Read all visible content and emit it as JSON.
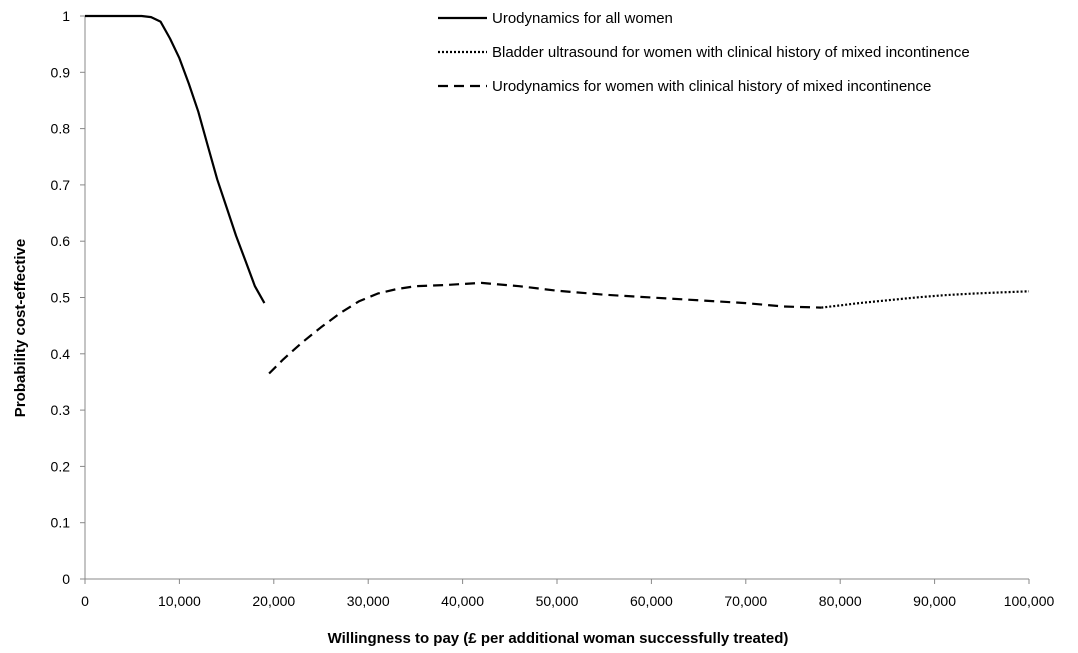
{
  "chart_data": {
    "type": "line",
    "title": "",
    "xlabel": "Willingness to pay (£ per additional woman successfully treated)",
    "ylabel": "Probability cost-effective",
    "xlim": [
      0,
      100000
    ],
    "ylim": [
      0,
      1
    ],
    "x_ticks": [
      0,
      10000,
      20000,
      30000,
      40000,
      50000,
      60000,
      70000,
      80000,
      90000,
      100000
    ],
    "x_tick_labels": [
      "0",
      "10,000",
      "20,000",
      "30,000",
      "40,000",
      "50,000",
      "60,000",
      "70,000",
      "80,000",
      "90,000",
      "100,000"
    ],
    "y_ticks": [
      0,
      0.1,
      0.2,
      0.3,
      0.4,
      0.5,
      0.6,
      0.7,
      0.8,
      0.9,
      1
    ],
    "y_tick_labels": [
      "0",
      "0.1",
      "0.2",
      "0.3",
      "0.4",
      "0.5",
      "0.6",
      "0.7",
      "0.8",
      "0.9",
      "1"
    ],
    "grid": false,
    "legend_position": "top-right",
    "series": [
      {
        "name": "Urodynamics for all women",
        "style": "solid",
        "color": "#000000",
        "points": [
          [
            0,
            1
          ],
          [
            2000,
            1
          ],
          [
            4000,
            1
          ],
          [
            6000,
            1
          ],
          [
            7000,
            0.998
          ],
          [
            8000,
            0.99
          ],
          [
            9000,
            0.96
          ],
          [
            10000,
            0.925
          ],
          [
            11000,
            0.88
          ],
          [
            12000,
            0.83
          ],
          [
            13000,
            0.77
          ],
          [
            14000,
            0.71
          ],
          [
            15000,
            0.66
          ],
          [
            16000,
            0.61
          ],
          [
            17000,
            0.565
          ],
          [
            18000,
            0.52
          ],
          [
            19000,
            0.49
          ]
        ]
      },
      {
        "name": "Bladder ultrasound for women with clinical history of mixed incontinence",
        "style": "dotted",
        "color": "#000000",
        "points": [
          [
            78000,
            0.482
          ],
          [
            80000,
            0.486
          ],
          [
            82000,
            0.49
          ],
          [
            85000,
            0.495
          ],
          [
            88000,
            0.5
          ],
          [
            91000,
            0.504
          ],
          [
            94000,
            0.507
          ],
          [
            97000,
            0.509
          ],
          [
            100000,
            0.511
          ]
        ]
      },
      {
        "name": "Urodynamics for women with clinical history of mixed incontinence",
        "style": "dashed",
        "color": "#000000",
        "points": [
          [
            19500,
            0.365
          ],
          [
            21000,
            0.39
          ],
          [
            23000,
            0.42
          ],
          [
            25000,
            0.447
          ],
          [
            27000,
            0.472
          ],
          [
            29000,
            0.493
          ],
          [
            31000,
            0.507
          ],
          [
            33000,
            0.515
          ],
          [
            35000,
            0.52
          ],
          [
            38000,
            0.522
          ],
          [
            42000,
            0.526
          ],
          [
            46000,
            0.52
          ],
          [
            50000,
            0.512
          ],
          [
            55000,
            0.505
          ],
          [
            60000,
            0.5
          ],
          [
            65000,
            0.495
          ],
          [
            70000,
            0.49
          ],
          [
            74000,
            0.484
          ],
          [
            78000,
            0.482
          ]
        ]
      }
    ]
  }
}
